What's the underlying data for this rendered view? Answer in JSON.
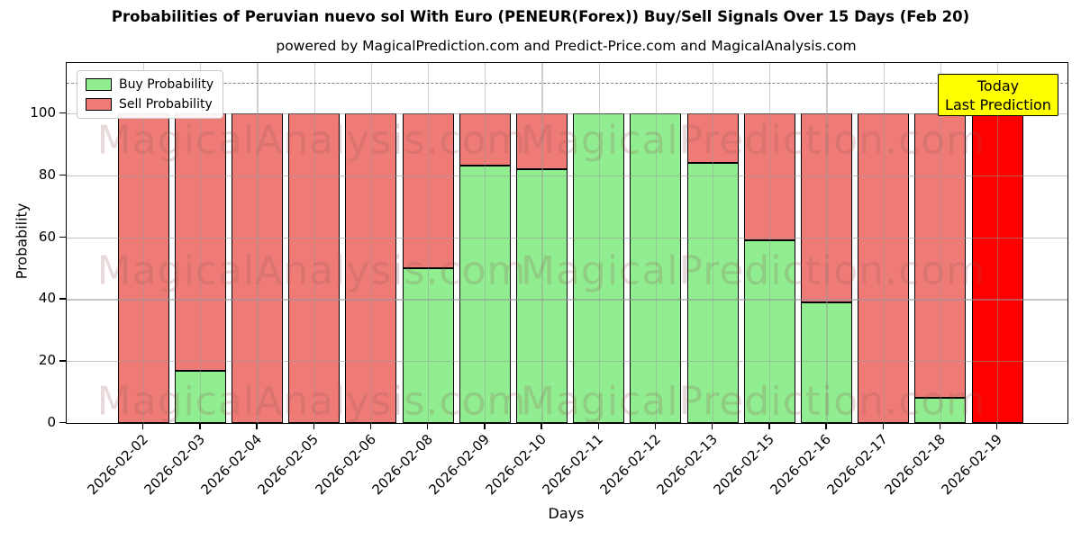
{
  "title": "Probabilities of Peruvian nuevo sol With Euro (PENEUR(Forex)) Buy/Sell Signals Over 15 Days (Feb 20)",
  "subtitle": "powered by MagicalPrediction.com and Predict-Price.com and MagicalAnalysis.com",
  "annotation": {
    "line1": "Today",
    "line2": "Last Prediction",
    "bg_color": "#ffff00"
  },
  "watermarks": {
    "left_text": "MagicalAnalysis.com",
    "right_text": "MagicalPrediction.com"
  },
  "chart_data": {
    "type": "bar",
    "stacked": true,
    "title": "Probabilities of Peruvian nuevo sol With Euro (PENEUR(Forex)) Buy/Sell Signals Over 15 Days (Feb 20)",
    "xlabel": "Days",
    "ylabel": "Probability",
    "categories": [
      "2026-02-02",
      "2026-02-03",
      "2026-02-04",
      "2026-02-05",
      "2026-02-06",
      "2026-02-08",
      "2026-02-09",
      "2026-02-10",
      "2026-02-11",
      "2026-02-12",
      "2026-02-13",
      "2026-02-15",
      "2026-02-16",
      "2026-02-17",
      "2026-02-18",
      "2026-02-19"
    ],
    "series": [
      {
        "name": "Buy Probability",
        "color": "#90ee90",
        "values": [
          0,
          17,
          0,
          0,
          0,
          50,
          83,
          82,
          100,
          100,
          84,
          59,
          39,
          0,
          8,
          0
        ]
      },
      {
        "name": "Sell Probability",
        "color": "#ef7b76",
        "values": [
          100,
          83,
          100,
          100,
          100,
          50,
          17,
          18,
          0,
          0,
          16,
          41,
          61,
          100,
          92,
          100
        ]
      }
    ],
    "special_bars": [
      {
        "index": 15,
        "color": "#ff0000",
        "note": "Today / Last Prediction bar"
      }
    ],
    "yticks": [
      0,
      20,
      40,
      60,
      80,
      100
    ],
    "ylim": [
      0,
      116
    ],
    "dashed_line_y": 110,
    "grid": true,
    "legend_position": "upper-left",
    "bar_edge_color": "#000000"
  }
}
